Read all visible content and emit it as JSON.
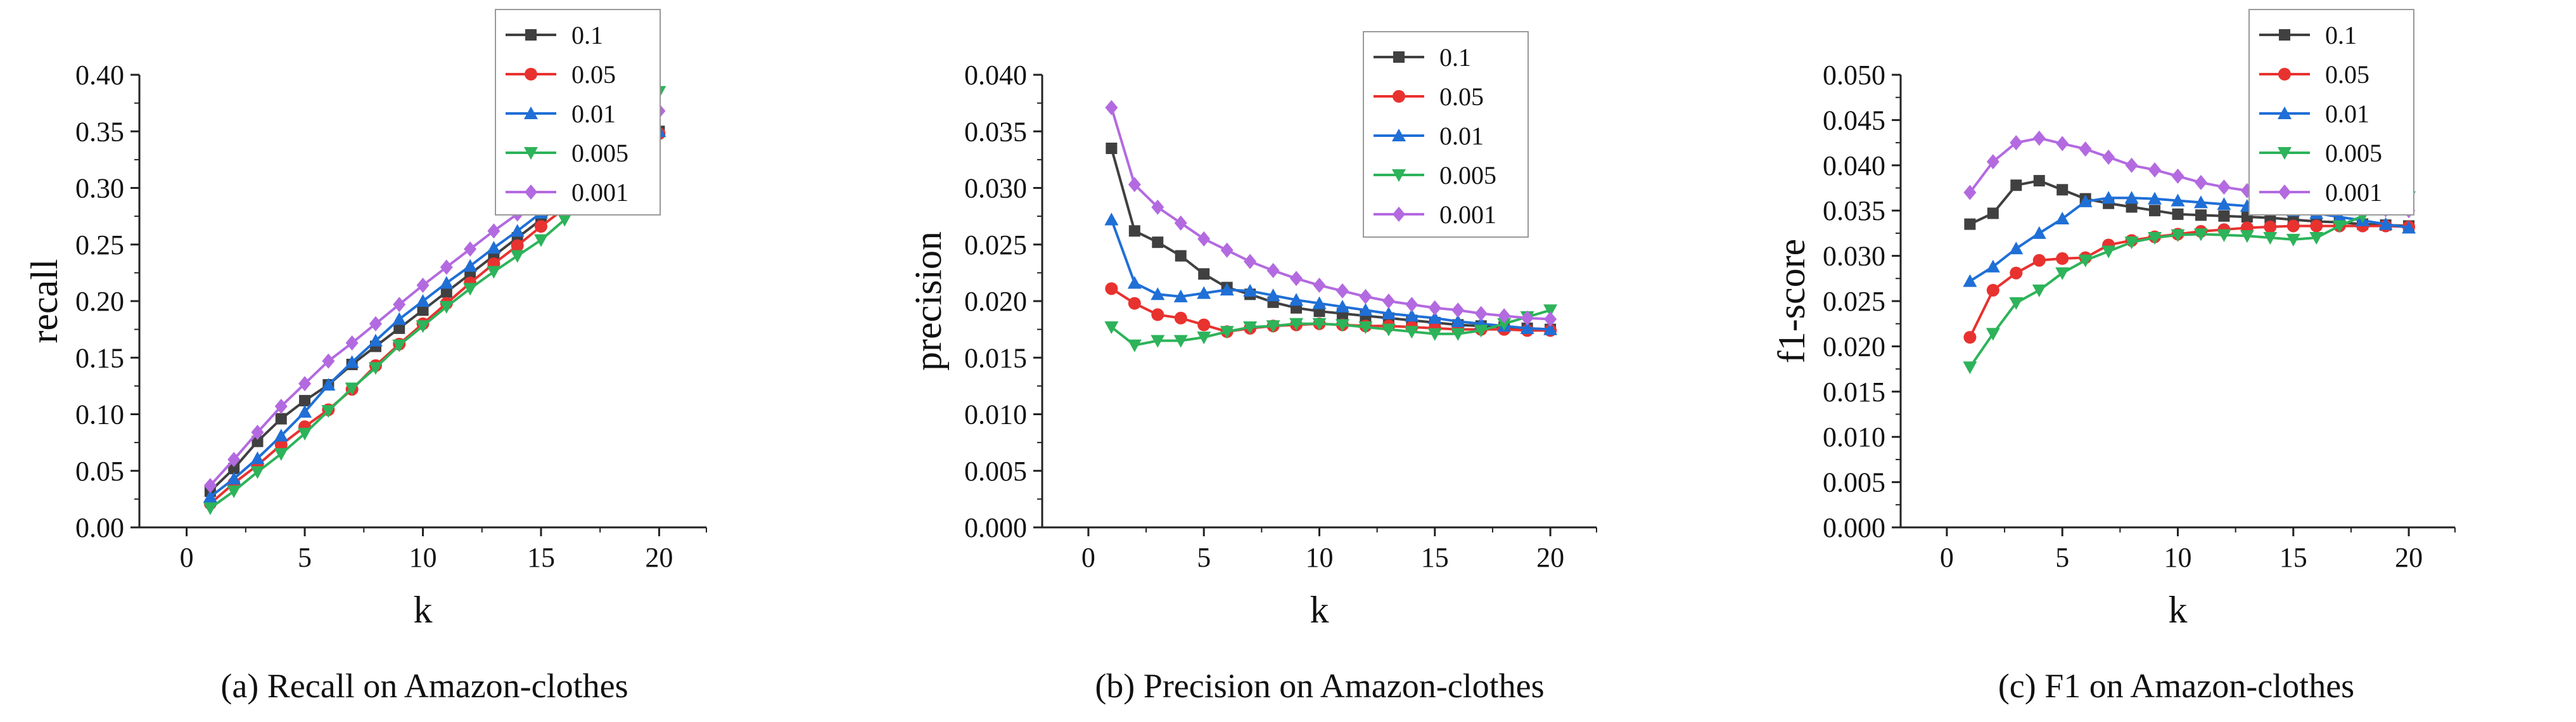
{
  "colors": {
    "0.1": "#404040",
    "0.05": "#e8322f",
    "0.01": "#1f6fd6",
    "0.005": "#2db35a",
    "0.001": "#b36ae0"
  },
  "markers": {
    "0.1": "square",
    "0.05": "circle",
    "0.01": "triangle-up",
    "0.005": "triangle-down",
    "0.001": "diamond"
  },
  "chart_data": [
    {
      "type": "line",
      "caption": "(a)  Recall on Amazon-clothes",
      "xlabel": "k",
      "ylabel": "recall",
      "xlim": [
        -2,
        22
      ],
      "ylim": [
        0,
        0.4
      ],
      "x_ticks": [
        0,
        5,
        10,
        15,
        20
      ],
      "x_tick_labels": [
        "0",
        "5",
        "10",
        "15",
        "20"
      ],
      "y_ticks": [
        0,
        0.05,
        0.1,
        0.15,
        0.2,
        0.25,
        0.3,
        0.35,
        0.4
      ],
      "y_tick_labels": [
        "0.00",
        "0.05",
        "0.10",
        "0.15",
        "0.20",
        "0.25",
        "0.30",
        "0.35",
        "0.40"
      ],
      "legend": [
        "0.1",
        "0.05",
        "0.01",
        "0.005",
        "0.001"
      ],
      "legend_position": "top-right",
      "x": [
        1,
        2,
        3,
        4,
        5,
        6,
        7,
        8,
        9,
        10,
        11,
        12,
        13,
        14,
        15,
        16,
        17,
        18,
        19,
        20
      ],
      "series": [
        {
          "name": "0.1",
          "values": [
            0.032,
            0.052,
            0.076,
            0.096,
            0.112,
            0.126,
            0.144,
            0.16,
            0.176,
            0.192,
            0.208,
            0.224,
            0.24,
            0.256,
            0.272,
            0.288,
            0.304,
            0.32,
            0.336,
            0.35
          ]
        },
        {
          "name": "0.05",
          "values": [
            0.021,
            0.039,
            0.055,
            0.073,
            0.089,
            0.104,
            0.122,
            0.143,
            0.162,
            0.18,
            0.198,
            0.216,
            0.233,
            0.249,
            0.266,
            0.282,
            0.3,
            0.315,
            0.333,
            0.348
          ]
        },
        {
          "name": "0.01",
          "values": [
            0.027,
            0.043,
            0.061,
            0.081,
            0.102,
            0.126,
            0.146,
            0.165,
            0.184,
            0.2,
            0.216,
            0.231,
            0.247,
            0.262,
            0.278,
            0.292,
            0.307,
            0.322,
            0.337,
            0.35
          ]
        },
        {
          "name": "0.005",
          "values": [
            0.017,
            0.032,
            0.049,
            0.065,
            0.083,
            0.103,
            0.123,
            0.141,
            0.161,
            0.178,
            0.195,
            0.211,
            0.226,
            0.24,
            0.254,
            0.272,
            0.3,
            0.327,
            0.355,
            0.385
          ]
        },
        {
          "name": "0.001",
          "values": [
            0.037,
            0.06,
            0.084,
            0.107,
            0.127,
            0.147,
            0.163,
            0.18,
            0.197,
            0.214,
            0.23,
            0.246,
            0.262,
            0.277,
            0.293,
            0.308,
            0.323,
            0.338,
            0.353,
            0.368
          ]
        }
      ]
    },
    {
      "type": "line",
      "caption": "(b)  Precision on Amazon-clothes",
      "xlabel": "k",
      "ylabel": "precision",
      "xlim": [
        -2,
        22
      ],
      "ylim": [
        0,
        0.04
      ],
      "x_ticks": [
        0,
        5,
        10,
        15,
        20
      ],
      "x_tick_labels": [
        "0",
        "5",
        "10",
        "15",
        "20"
      ],
      "y_ticks": [
        0,
        0.005,
        0.01,
        0.015,
        0.02,
        0.025,
        0.03,
        0.035,
        0.04
      ],
      "y_tick_labels": [
        "0.000",
        "0.005",
        "0.010",
        "0.015",
        "0.020",
        "0.025",
        "0.030",
        "0.035",
        "0.040"
      ],
      "legend": [
        "0.1",
        "0.05",
        "0.01",
        "0.005",
        "0.001"
      ],
      "legend_position": "top-right",
      "x": [
        1,
        2,
        3,
        4,
        5,
        6,
        7,
        8,
        9,
        10,
        11,
        12,
        13,
        14,
        15,
        16,
        17,
        18,
        19,
        20
      ],
      "series": [
        {
          "name": "0.1",
          "values": [
            0.0335,
            0.0262,
            0.0252,
            0.024,
            0.0224,
            0.0212,
            0.0206,
            0.0199,
            0.0194,
            0.0191,
            0.0189,
            0.0187,
            0.0185,
            0.0183,
            0.0181,
            0.0179,
            0.0178,
            0.0177,
            0.0176,
            0.0175
          ]
        },
        {
          "name": "0.05",
          "values": [
            0.0211,
            0.0198,
            0.0188,
            0.0185,
            0.0179,
            0.0173,
            0.0176,
            0.0178,
            0.0179,
            0.018,
            0.0179,
            0.0178,
            0.0178,
            0.0177,
            0.0176,
            0.0175,
            0.0175,
            0.0175,
            0.0174,
            0.0174
          ]
        },
        {
          "name": "0.01",
          "values": [
            0.0272,
            0.0216,
            0.0206,
            0.0204,
            0.0207,
            0.021,
            0.0209,
            0.0205,
            0.0201,
            0.0198,
            0.0195,
            0.0192,
            0.0189,
            0.0187,
            0.0185,
            0.0182,
            0.018,
            0.0178,
            0.0176,
            0.0175
          ]
        },
        {
          "name": "0.005",
          "values": [
            0.0177,
            0.0161,
            0.0165,
            0.0165,
            0.0168,
            0.0173,
            0.0177,
            0.0178,
            0.018,
            0.018,
            0.0179,
            0.0177,
            0.0175,
            0.0173,
            0.0171,
            0.0171,
            0.0174,
            0.018,
            0.0186,
            0.0192
          ]
        },
        {
          "name": "0.001",
          "values": [
            0.0371,
            0.0303,
            0.0283,
            0.0269,
            0.0255,
            0.0245,
            0.0235,
            0.0227,
            0.022,
            0.0214,
            0.0209,
            0.0204,
            0.02,
            0.0197,
            0.0194,
            0.0192,
            0.0189,
            0.0187,
            0.0185,
            0.0184
          ]
        }
      ]
    },
    {
      "type": "line",
      "caption": "(c)  F1 on Amazon-clothes",
      "xlabel": "k",
      "ylabel": "f1-score",
      "xlim": [
        -2,
        22
      ],
      "ylim": [
        0,
        0.05
      ],
      "x_ticks": [
        0,
        5,
        10,
        15,
        20
      ],
      "x_tick_labels": [
        "0",
        "5",
        "10",
        "15",
        "20"
      ],
      "y_ticks": [
        0,
        0.005,
        0.01,
        0.015,
        0.02,
        0.025,
        0.03,
        0.035,
        0.04,
        0.045,
        0.05
      ],
      "y_tick_labels": [
        "0.000",
        "0.005",
        "0.010",
        "0.015",
        "0.020",
        "0.025",
        "0.030",
        "0.035",
        "0.040",
        "0.045",
        "0.050"
      ],
      "legend": [
        "0.1",
        "0.05",
        "0.01",
        "0.005",
        "0.001"
      ],
      "legend_position": "top-right",
      "x": [
        1,
        2,
        3,
        4,
        5,
        6,
        7,
        8,
        9,
        10,
        11,
        12,
        13,
        14,
        15,
        16,
        17,
        18,
        19,
        20
      ],
      "series": [
        {
          "name": "0.1",
          "values": [
            0.0335,
            0.0347,
            0.0378,
            0.0383,
            0.0373,
            0.0363,
            0.0358,
            0.0354,
            0.035,
            0.0346,
            0.0345,
            0.0344,
            0.0343,
            0.0342,
            0.034,
            0.0338,
            0.0337,
            0.0335,
            0.0334,
            0.0333
          ]
        },
        {
          "name": "0.05",
          "values": [
            0.021,
            0.0262,
            0.0281,
            0.0295,
            0.0297,
            0.0298,
            0.0312,
            0.0317,
            0.0321,
            0.0324,
            0.0327,
            0.0329,
            0.0331,
            0.0332,
            0.0333,
            0.0333,
            0.0333,
            0.0333,
            0.0333,
            0.0332
          ]
        },
        {
          "name": "0.01",
          "values": [
            0.0272,
            0.0288,
            0.0308,
            0.0325,
            0.0341,
            0.036,
            0.0364,
            0.0364,
            0.0363,
            0.0361,
            0.0359,
            0.0357,
            0.0355,
            0.0353,
            0.035,
            0.0347,
            0.0343,
            0.0339,
            0.0335,
            0.0331
          ]
        },
        {
          "name": "0.005",
          "values": [
            0.0177,
            0.0214,
            0.0248,
            0.0262,
            0.0281,
            0.0295,
            0.0305,
            0.0315,
            0.032,
            0.0323,
            0.0324,
            0.0323,
            0.0322,
            0.032,
            0.0318,
            0.032,
            0.0333,
            0.0344,
            0.0355,
            0.0365
          ]
        },
        {
          "name": "0.001",
          "values": [
            0.037,
            0.0404,
            0.0425,
            0.043,
            0.0424,
            0.0418,
            0.0409,
            0.04,
            0.0395,
            0.0388,
            0.0381,
            0.0376,
            0.0372,
            0.0368,
            0.0364,
            0.036,
            0.0357,
            0.0354,
            0.0351,
            0.035
          ]
        }
      ]
    }
  ]
}
